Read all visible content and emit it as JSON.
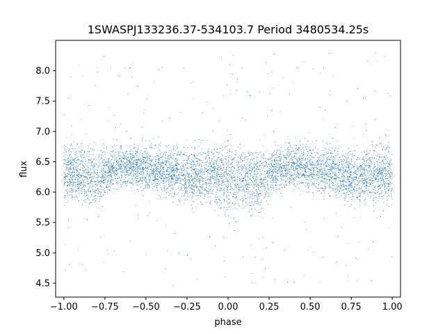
{
  "chart_data": {
    "type": "scatter",
    "title": "1SWASPJ133236.37-534103.7 Period 3480534.25s",
    "xlabel": "phase",
    "ylabel": "flux",
    "xlim": [
      -1.05,
      1.05
    ],
    "ylim": [
      4.27,
      8.5
    ],
    "x_ticks": [
      "−1.00",
      "−0.75",
      "−0.50",
      "−0.25",
      "0.00",
      "0.25",
      "0.50",
      "0.75",
      "1.00"
    ],
    "x_tick_values": [
      -1.0,
      -0.75,
      -0.5,
      -0.25,
      0.0,
      0.25,
      0.5,
      0.75,
      1.0
    ],
    "y_ticks": [
      "4.5",
      "5.0",
      "5.5",
      "6.0",
      "6.5",
      "7.0",
      "7.5",
      "8.0"
    ],
    "y_tick_values": [
      4.5,
      5.0,
      5.5,
      6.0,
      6.5,
      7.0,
      7.5,
      8.0
    ],
    "grid": false,
    "legend": "none",
    "marker_color": "#1f77b4",
    "series": [
      {
        "points_note_free": true,
        "phase_range": [
          -1.0,
          1.0
        ],
        "flux_core_range": [
          5.5,
          7.0
        ],
        "flux_outlier_range": [
          4.45,
          8.3
        ],
        "profile_x": [
          -1.0,
          -0.9,
          -0.8,
          -0.7,
          -0.6,
          -0.5,
          -0.4,
          -0.3,
          -0.2,
          -0.1,
          0.0,
          0.1,
          0.2,
          0.3,
          0.4,
          0.5,
          0.6,
          0.7,
          0.8,
          0.9,
          1.0
        ],
        "profile_mean": [
          6.35,
          6.3,
          6.2,
          6.4,
          6.45,
          6.4,
          6.35,
          6.3,
          6.25,
          6.3,
          6.2,
          6.25,
          6.2,
          6.4,
          6.45,
          6.4,
          6.35,
          6.3,
          6.25,
          6.3,
          6.3
        ],
        "profile_spread": [
          0.45,
          0.4,
          0.45,
          0.3,
          0.3,
          0.32,
          0.35,
          0.35,
          0.38,
          0.42,
          0.5,
          0.45,
          0.45,
          0.32,
          0.3,
          0.32,
          0.35,
          0.35,
          0.38,
          0.4,
          0.45
        ]
      }
    ]
  }
}
